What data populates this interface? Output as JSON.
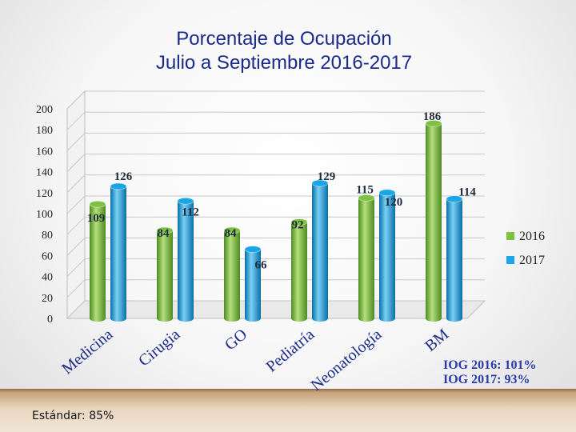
{
  "title_lines": [
    "Porcentaje de Ocupación",
    "Julio a Septiembre 2016-2017"
  ],
  "footer": {
    "standard": "Estándar: 85%"
  },
  "iog": {
    "line1": "IOG 2016: 101%",
    "line2": "IOG 2017: 93%"
  },
  "colors": {
    "s2016": "#7dc242",
    "s2016_dark": "#4f8a22",
    "s2016_light": "#b2e07a",
    "s2017": "#1aa6e6",
    "s2017_dark": "#0a6fa6",
    "s2017_light": "#78d0f6",
    "label": "#1f2a3a",
    "axis_text": "#222222"
  },
  "chart_data": {
    "type": "bar",
    "title": "Porcentaje de Ocupación Julio a Septiembre 2016-2017",
    "categories": [
      "Medicina",
      "Cirugia",
      "GO",
      "Pediatría",
      "Neonatología",
      "BM"
    ],
    "series": [
      {
        "name": "2016",
        "values": [
          109,
          84,
          84,
          92,
          115,
          186
        ]
      },
      {
        "name": "2017",
        "values": [
          126,
          112,
          66,
          129,
          120,
          114
        ]
      }
    ],
    "ylim": [
      0,
      200
    ],
    "yticks": [
      0,
      20,
      40,
      60,
      80,
      100,
      120,
      140,
      160,
      180,
      200
    ],
    "grid": true,
    "legend": "right",
    "style": "3d-cylinder"
  }
}
